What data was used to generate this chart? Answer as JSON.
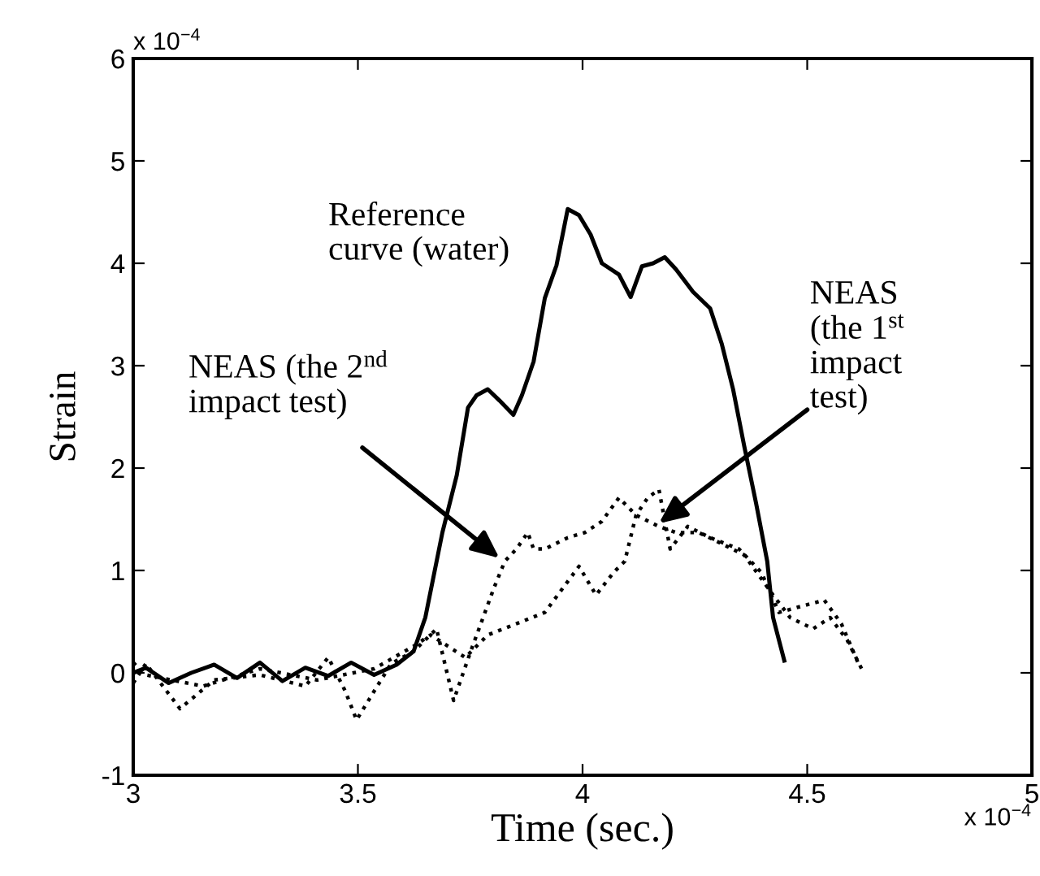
{
  "chart_data": {
    "type": "line",
    "xlabel": "Time (sec.)",
    "ylabel": "Strain",
    "xlim": [
      3,
      5
    ],
    "ylim": [
      -1,
      6
    ],
    "xticks": [
      3,
      3.5,
      4,
      4.5,
      5
    ],
    "yticks": [
      -1,
      0,
      1,
      2,
      3,
      4,
      5,
      6
    ],
    "series": [
      {
        "color": "#000000",
        "line_style": "solid",
        "x": [
          3.0,
          3.028,
          3.079,
          3.129,
          3.18,
          3.231,
          3.282,
          3.332,
          3.383,
          3.434,
          3.485,
          3.536,
          3.586,
          3.624,
          3.65,
          3.688,
          3.72,
          3.745,
          3.764,
          3.789,
          3.815,
          3.846,
          3.865,
          3.891,
          3.916,
          3.942,
          3.967,
          3.992,
          4.018,
          4.043,
          4.081,
          4.107,
          4.132,
          4.157,
          4.183,
          4.208,
          4.246,
          4.284,
          4.31,
          4.335,
          4.36,
          4.386,
          4.411,
          4.424,
          4.449
        ],
        "values": [
          0.0,
          0.05,
          -0.1,
          0.0,
          0.08,
          -0.05,
          0.1,
          -0.08,
          0.05,
          -0.03,
          0.1,
          -0.02,
          0.08,
          0.21,
          0.54,
          1.37,
          1.93,
          2.59,
          2.71,
          2.77,
          2.66,
          2.52,
          2.71,
          3.04,
          3.66,
          3.98,
          4.53,
          4.47,
          4.28,
          4.0,
          3.89,
          3.67,
          3.97,
          4.0,
          4.06,
          3.94,
          3.72,
          3.56,
          3.21,
          2.77,
          2.21,
          1.66,
          1.09,
          0.54,
          0.12
        ]
      },
      {
        "color": "#000000",
        "line_style": "dotted",
        "x": [
          3.0,
          3.028,
          3.104,
          3.18,
          3.282,
          3.383,
          3.434,
          3.472,
          3.497,
          3.536,
          3.574,
          3.624,
          3.675,
          3.713,
          3.751,
          3.802,
          3.827,
          3.853,
          3.878,
          3.891,
          3.916,
          3.967,
          4.005,
          4.043,
          4.081,
          4.119,
          4.17,
          4.208,
          4.259,
          4.31,
          4.36,
          4.424,
          4.462,
          4.513,
          4.551,
          4.589,
          4.621
        ],
        "values": [
          -0.1,
          0.09,
          -0.35,
          -0.07,
          -0.02,
          -0.13,
          0.15,
          -0.18,
          -0.46,
          -0.18,
          0.09,
          0.21,
          0.43,
          -0.27,
          0.21,
          0.82,
          1.09,
          1.21,
          1.37,
          1.21,
          1.21,
          1.32,
          1.37,
          1.48,
          1.71,
          1.54,
          1.43,
          1.37,
          1.37,
          1.26,
          1.15,
          0.76,
          0.54,
          0.43,
          0.54,
          0.32,
          0.04
        ]
      },
      {
        "color": "#000000",
        "line_style": "dotted",
        "x": [
          3.0,
          3.028,
          3.155,
          3.282,
          3.409,
          3.536,
          3.624,
          3.662,
          3.739,
          3.789,
          3.853,
          3.916,
          3.992,
          4.03,
          4.069,
          4.094,
          4.119,
          4.145,
          4.17,
          4.195,
          4.234,
          4.284,
          4.348,
          4.398,
          4.437,
          4.487,
          4.538,
          4.576,
          4.614
        ],
        "values": [
          0.1,
          -0.02,
          -0.13,
          0.04,
          -0.07,
          0.04,
          0.26,
          0.37,
          0.15,
          0.37,
          0.48,
          0.59,
          1.04,
          0.76,
          0.98,
          1.09,
          1.54,
          1.71,
          1.79,
          1.21,
          1.43,
          1.32,
          1.21,
          0.98,
          0.59,
          0.65,
          0.71,
          0.48,
          0.09
        ]
      }
    ],
    "annotations": [
      "x 10$^{−4}$",
      "x 10$^{−4}$",
      "Reference\ncurve (water)",
      {
        "text": "NEAS (the 2$^{nd}$\nimpact test)",
        "x": 3.815,
        "y": 1.12
      },
      {
        "text": "NEAS\n(the 1$^{st}$\nimpact\ntest)",
        "x": 4.17,
        "y": 1.46
      }
    ]
  }
}
